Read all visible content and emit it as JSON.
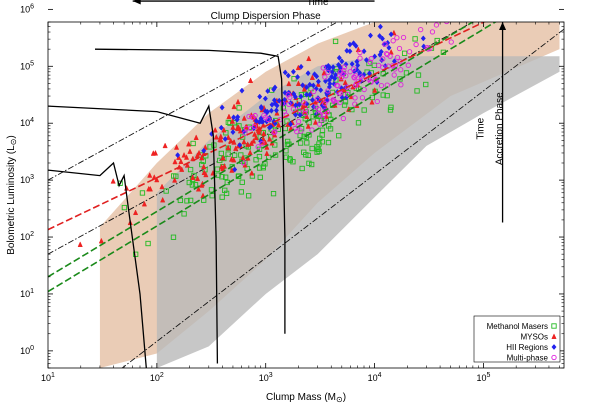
{
  "chart_data": {
    "type": "scatter",
    "xlabel": "Clump Mass (M",
    "xlabel_symbol": "⊙",
    "xlabel_close": ")",
    "ylabel": "Bolometric Luminosity (L",
    "ylabel_symbol": "⊙",
    "ylabel_close": ")",
    "xscale": "log",
    "yscale": "log",
    "xlim": [
      10,
      550000
    ],
    "ylim": [
      0.5,
      600000
    ],
    "x_ticks": [
      {
        "value": 10,
        "base": "10",
        "exp": "1"
      },
      {
        "value": 100,
        "base": "10",
        "exp": "2"
      },
      {
        "value": 1000,
        "base": "10",
        "exp": "3"
      },
      {
        "value": 10000,
        "base": "10",
        "exp": "4"
      },
      {
        "value": 100000,
        "base": "10",
        "exp": "5"
      }
    ],
    "y_ticks": [
      {
        "value": 1,
        "base": "10",
        "exp": "0"
      },
      {
        "value": 10,
        "base": "10",
        "exp": "1"
      },
      {
        "value": 100,
        "base": "10",
        "exp": "2"
      },
      {
        "value": 1000,
        "base": "10",
        "exp": "3"
      },
      {
        "value": 10000,
        "base": "10",
        "exp": "4"
      },
      {
        "value": 100000,
        "base": "10",
        "exp": "5"
      },
      {
        "value": 1000000,
        "base": "10",
        "exp": "6"
      }
    ],
    "grid": false,
    "legend_position": "bottom-right",
    "series": [
      {
        "name": "Methanol Masers",
        "marker": "square",
        "color": "#22bb22",
        "center": [
          1500,
          6000
        ],
        "spread_x": 0.6,
        "spread_y": 0.65,
        "count": 190
      },
      {
        "name": "MYSOs",
        "marker": "triangle",
        "color": "#ee2222",
        "center": [
          700,
          6000
        ],
        "spread_x": 0.55,
        "spread_y": 0.55,
        "count": 170
      },
      {
        "name": "HII Regions",
        "marker": "diamond",
        "color": "#2222ee",
        "center": [
          2500,
          40000
        ],
        "spread_x": 0.45,
        "spread_y": 0.45,
        "count": 150
      },
      {
        "name": "Multi-phase",
        "marker": "circle",
        "color": "#dd22dd",
        "center": [
          5000,
          40000
        ],
        "spread_x": 0.5,
        "spread_y": 0.45,
        "count": 130
      }
    ],
    "fit_lines": [
      {
        "color": "#e02020",
        "style": "dashed",
        "x": [
          10,
          550000
        ],
        "y": [
          135,
          2800000
        ]
      },
      {
        "color": "#1a8a1a",
        "style": "dashed",
        "x": [
          10,
          550000
        ],
        "y": [
          20,
          5500000
        ]
      },
      {
        "color": "#1a8a1a",
        "style": "dashed",
        "x": [
          10,
          550000
        ],
        "y": [
          11,
          3200000
        ]
      }
    ],
    "reference_lines": [
      {
        "color": "#111111",
        "style": "dashdot",
        "x": [
          10,
          550000
        ],
        "y": [
          1000,
          90000000
        ]
      },
      {
        "color": "#111111",
        "style": "dashdot",
        "x": [
          10,
          550000
        ],
        "y": [
          50,
          4500000
        ]
      },
      {
        "color": "#111111",
        "style": "dashdot",
        "x": [
          10,
          550000
        ],
        "y": [
          0.05,
          450000
        ]
      }
    ],
    "bands": [
      {
        "name": "orange",
        "color": "#d8a27a",
        "opacity": 0.55,
        "lower": [
          [
            30,
            0.5
          ],
          [
            100,
            0.9
          ],
          [
            300,
            5
          ],
          [
            1000,
            40
          ],
          [
            3000,
            400
          ],
          [
            10000,
            3000
          ],
          [
            50000,
            30000
          ],
          [
            500000,
            200000
          ]
        ],
        "upper": [
          [
            30,
            150
          ],
          [
            100,
            2000
          ],
          [
            300,
            15000
          ],
          [
            1000,
            80000
          ],
          [
            3000,
            250000
          ],
          [
            10000,
            600000
          ],
          [
            50000,
            600000
          ],
          [
            500000,
            600000
          ]
        ]
      },
      {
        "name": "grey",
        "color": "#b9b9b9",
        "opacity": 0.8,
        "lower": [
          [
            100,
            0.5
          ],
          [
            300,
            1.2
          ],
          [
            1000,
            10
          ],
          [
            3000,
            50
          ],
          [
            10000,
            500
          ],
          [
            30000,
            4000
          ],
          [
            100000,
            15000
          ],
          [
            500000,
            80000
          ]
        ],
        "upper": [
          [
            100,
            600
          ],
          [
            300,
            5000
          ],
          [
            1000,
            30000
          ],
          [
            3000,
            100000
          ],
          [
            10000,
            150000
          ],
          [
            30000,
            150000
          ],
          [
            100000,
            150000
          ],
          [
            500000,
            150000
          ]
        ]
      }
    ],
    "tracks": [
      {
        "points": [
          [
            27,
            200000
          ],
          [
            300,
            190000
          ],
          [
            900,
            170000
          ],
          [
            1300,
            150000
          ],
          [
            1400,
            60000
          ],
          [
            1500,
            100
          ],
          [
            1500,
            2
          ]
        ]
      },
      {
        "points": [
          [
            10,
            20000
          ],
          [
            100,
            16000
          ],
          [
            250,
            10000
          ],
          [
            300,
            20000
          ],
          [
            330,
            6000
          ],
          [
            350,
            100
          ],
          [
            360,
            0.6
          ]
        ]
      },
      {
        "points": [
          [
            10,
            1500
          ],
          [
            30,
            1200
          ],
          [
            40,
            2000
          ],
          [
            45,
            800
          ],
          [
            50,
            1200
          ],
          [
            55,
            300
          ],
          [
            70,
            10
          ],
          [
            80,
            0.5
          ]
        ]
      }
    ],
    "annotations": [
      {
        "text": "Time",
        "x": 3000,
        "y": 1200000,
        "rotate": false
      },
      {
        "text": "Clump Dispersion Phase",
        "x": 1000,
        "y": 680000,
        "rotate": false
      },
      {
        "text": "Time",
        "x": 100000,
        "y": 8000,
        "rotate": true
      },
      {
        "text": "Accretion Phase",
        "x": 150000,
        "y": 8000,
        "rotate": true
      }
    ],
    "arrows": [
      {
        "from": [
          10000,
          1400000
        ],
        "to": [
          60,
          1400000
        ]
      },
      {
        "from": [
          150000,
          180
        ],
        "to": [
          150000,
          600000
        ]
      }
    ]
  }
}
